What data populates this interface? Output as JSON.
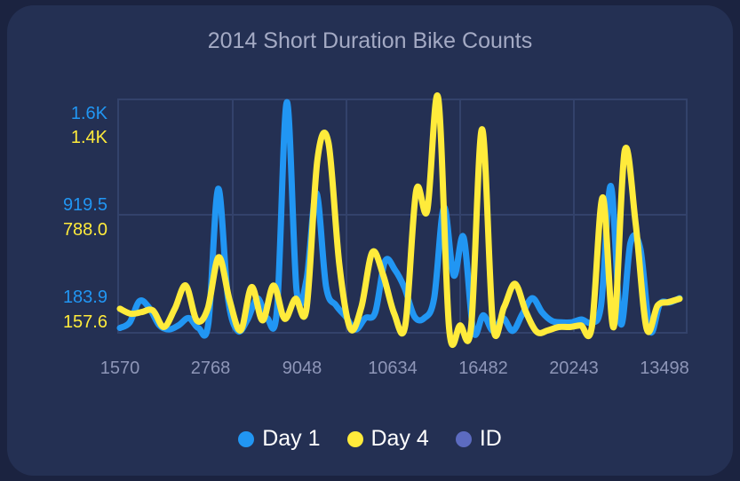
{
  "chart_data": {
    "type": "line",
    "title": "2014 Short Duration Bike Counts",
    "xlabel": "",
    "ylabel": "",
    "x_tick_labels": [
      "1570",
      "2768",
      "9048",
      "10634",
      "16482",
      "20243",
      "13498"
    ],
    "y_ticks_day1": [
      "1.6K",
      "919.5",
      "183.9"
    ],
    "y_ticks_day4": [
      "1.4K",
      "788.0",
      "157.6"
    ],
    "ylim_day1": [
      0,
      1650
    ],
    "ylim_day4": [
      0,
      1420
    ],
    "grid": true,
    "legend_position": "bottom",
    "series": [
      {
        "name": "Day 1",
        "color": "#2196f3",
        "values": [
          40,
          80,
          230,
          180,
          60,
          30,
          60,
          110,
          40,
          70,
          1020,
          250,
          20,
          100,
          250,
          110,
          170,
          1630,
          300,
          380,
          990,
          330,
          200,
          120,
          30,
          110,
          150,
          510,
          450,
          320,
          120,
          110,
          250,
          890,
          410,
          680,
          15,
          130,
          20,
          110,
          20,
          140,
          250,
          150,
          90,
          80,
          80,
          100,
          80,
          200,
          1040,
          70,
          640,
          600,
          20,
          210,
          220,
          250
        ]
      },
      {
        "name": "Day 4",
        "color": "#ffeb3b",
        "values": [
          150,
          120,
          130,
          140,
          40,
          150,
          290,
          80,
          150,
          460,
          200,
          20,
          280,
          80,
          290,
          90,
          210,
          150,
          1050,
          1150,
          410,
          30,
          160,
          490,
          350,
          120,
          50,
          860,
          740,
          1420,
          30,
          50,
          40,
          1230,
          50,
          160,
          300,
          130,
          10,
          20,
          40,
          40,
          50,
          40,
          820,
          40,
          1100,
          660,
          30,
          170,
          190,
          210
        ]
      },
      {
        "name": "ID",
        "color": "#5c6bc0",
        "values": []
      }
    ]
  }
}
